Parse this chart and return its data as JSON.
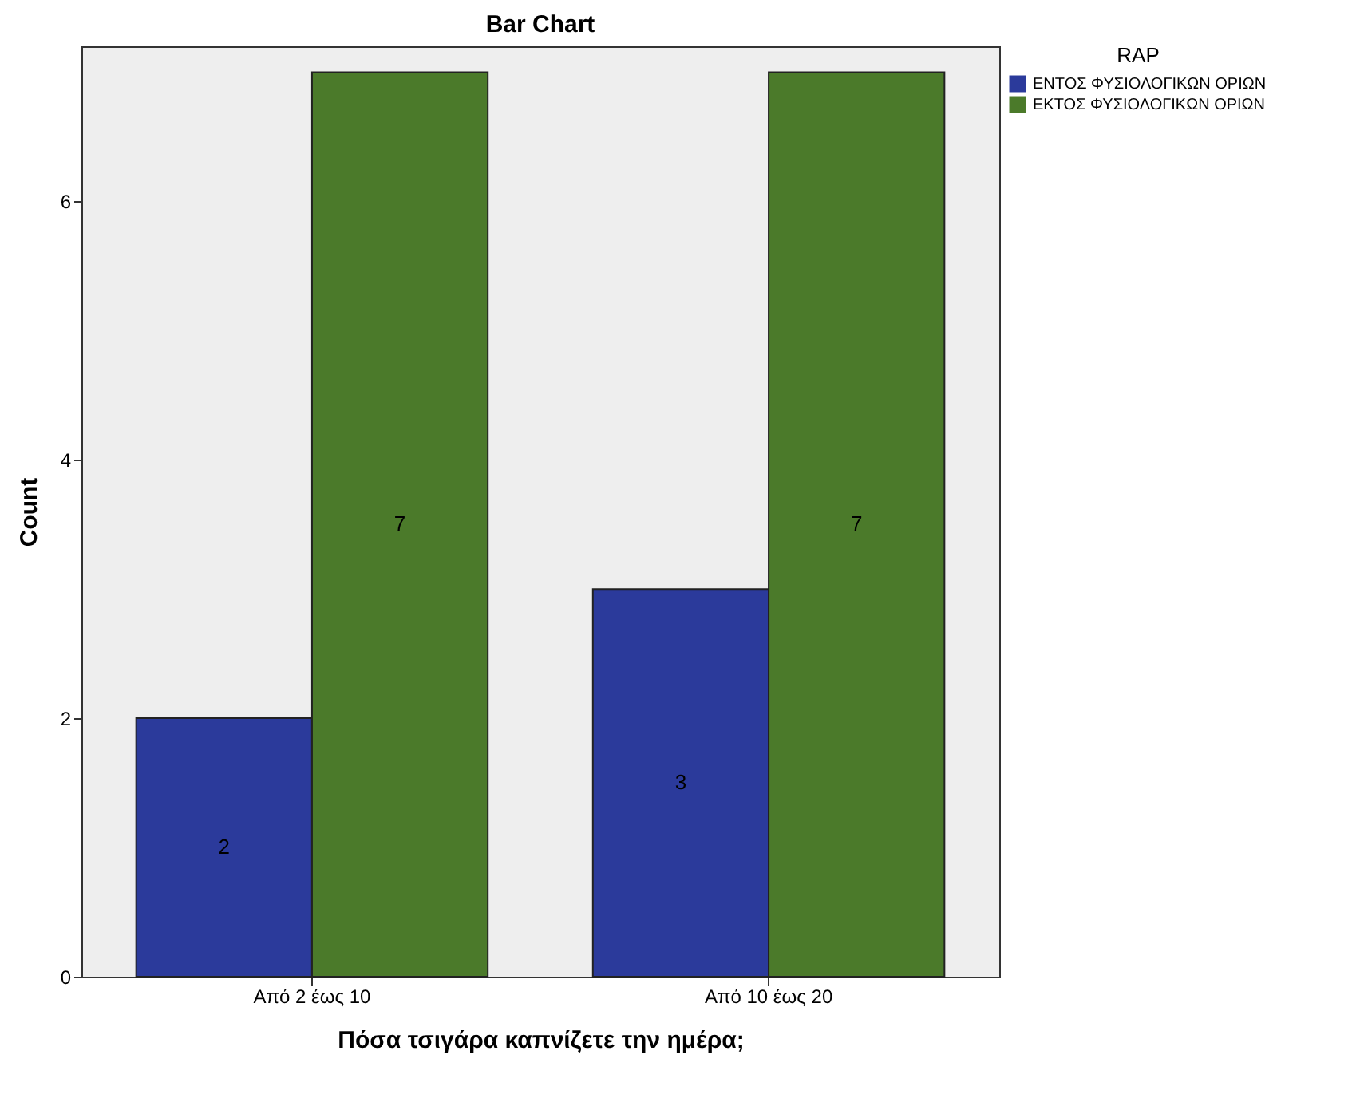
{
  "chart_data": {
    "type": "bar",
    "title": "Bar Chart",
    "xlabel": "Πόσα τσιγάρα καπνίζετε την ημέρα;",
    "ylabel": "Count",
    "legend_title": "RAP",
    "categories": [
      "Από 2 έως 10",
      "Από 10 έως 20"
    ],
    "series": [
      {
        "name": "ΕΝΤΟΣ ΦΥΣΙΟΛΟΓΙΚΩΝ ΟΡΙΩΝ",
        "color": "#2b3a9b",
        "values": [
          2,
          3
        ]
      },
      {
        "name": "ΕΚΤΟΣ ΦΥΣΙΟΛΟΓΙΚΩΝ ΟΡΙΩΝ",
        "color": "#4b7a2a",
        "values": [
          7,
          7
        ]
      }
    ],
    "ylim": [
      0,
      7.2
    ],
    "yticks": [
      0,
      2,
      4,
      6
    ],
    "data_labels": true,
    "legend": "top right",
    "grid": false
  }
}
